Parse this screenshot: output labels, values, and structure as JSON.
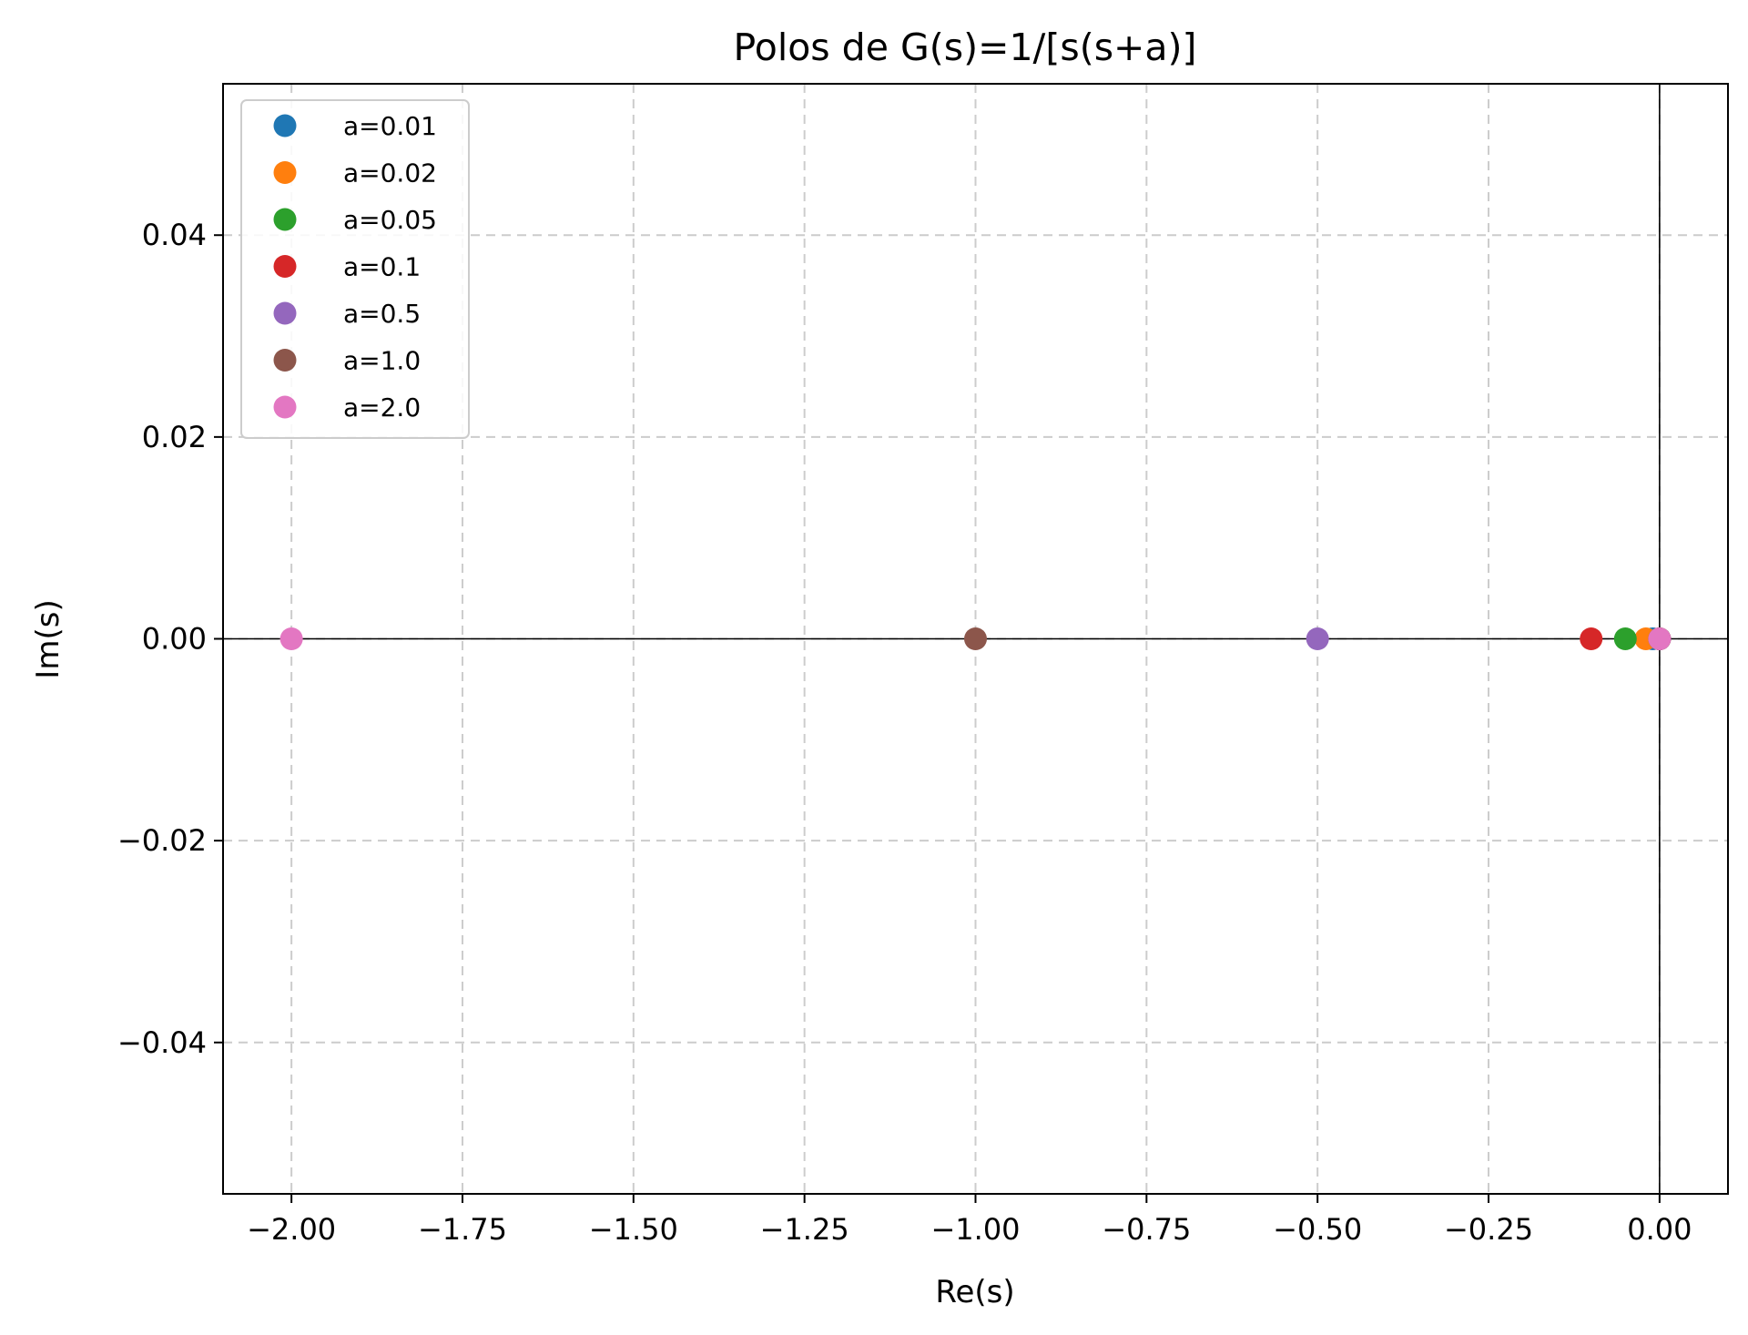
{
  "chart_data": {
    "type": "scatter",
    "title": "Polos de G(s)=1/[s(s+a)]",
    "xlabel": "Re(s)",
    "ylabel": "Im(s)",
    "xlim": [
      -2.1,
      0.1
    ],
    "ylim": [
      -0.055,
      0.055
    ],
    "xticks": [
      -2.0,
      -1.75,
      -1.5,
      -1.25,
      -1.0,
      -0.75,
      -0.5,
      -0.25,
      0.0
    ],
    "xtick_labels": [
      "−2.00",
      "−1.75",
      "−1.50",
      "−1.25",
      "−1.00",
      "−0.75",
      "−0.50",
      "−0.25",
      "0.00"
    ],
    "yticks": [
      0.04,
      0.02,
      0.0,
      -0.02,
      -0.04
    ],
    "ytick_labels": [
      "0.04",
      "0.02",
      "0.00",
      "−0.02",
      "−0.04"
    ],
    "grid": true,
    "legend_position": "top-left",
    "reference_lines": {
      "horizontal_y": 0,
      "vertical_x": 0,
      "color": "#000000"
    },
    "series": [
      {
        "name": "a=0.01",
        "color": "#1f77b4",
        "points": [
          {
            "x": 0.0,
            "y": 0.0
          },
          {
            "x": -0.01,
            "y": 0.0
          }
        ]
      },
      {
        "name": "a=0.02",
        "color": "#ff7f0e",
        "points": [
          {
            "x": 0.0,
            "y": 0.0
          },
          {
            "x": -0.02,
            "y": 0.0
          }
        ]
      },
      {
        "name": "a=0.05",
        "color": "#2ca02c",
        "points": [
          {
            "x": 0.0,
            "y": 0.0
          },
          {
            "x": -0.05,
            "y": 0.0
          }
        ]
      },
      {
        "name": "a=0.1",
        "color": "#d62728",
        "points": [
          {
            "x": 0.0,
            "y": 0.0
          },
          {
            "x": -0.1,
            "y": 0.0
          }
        ]
      },
      {
        "name": "a=0.5",
        "color": "#9467bd",
        "points": [
          {
            "x": 0.0,
            "y": 0.0
          },
          {
            "x": -0.5,
            "y": 0.0
          }
        ]
      },
      {
        "name": "a=1.0",
        "color": "#8c564b",
        "points": [
          {
            "x": 0.0,
            "y": 0.0
          },
          {
            "x": -1.0,
            "y": 0.0
          }
        ]
      },
      {
        "name": "a=2.0",
        "color": "#e377c2",
        "points": [
          {
            "x": 0.0,
            "y": 0.0
          },
          {
            "x": -2.0,
            "y": 0.0
          }
        ]
      }
    ]
  }
}
